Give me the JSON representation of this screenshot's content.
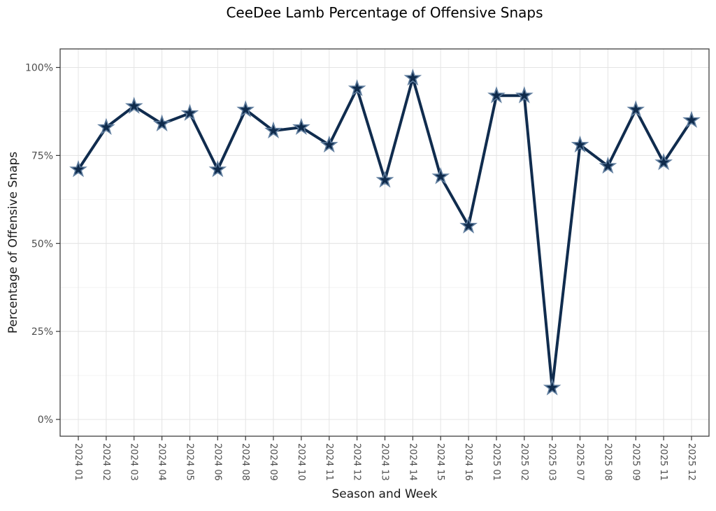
{
  "chart_data": {
    "type": "line",
    "title": "CeeDee Lamb Percentage of Offensive Snaps",
    "xlabel": "Season and Week",
    "ylabel": "Percentage of Offensive Snaps",
    "categories": [
      "2024 01",
      "2024 02",
      "2024 03",
      "2024 04",
      "2024 05",
      "2024 06",
      "2024 08",
      "2024 09",
      "2024 10",
      "2024 11",
      "2024 12",
      "2024 13",
      "2024 14",
      "2024 15",
      "2024 16",
      "2025 01",
      "2025 02",
      "2025 03",
      "2025 07",
      "2025 08",
      "2025 09",
      "2025 11",
      "2025 12"
    ],
    "values": [
      71,
      83,
      89,
      84,
      87,
      71,
      88,
      82,
      83,
      78,
      94,
      68,
      97,
      69,
      55,
      92,
      92,
      9,
      78,
      72,
      88,
      73,
      85
    ],
    "ylim": [
      0,
      100
    ],
    "y_ticks": [
      0,
      25,
      50,
      75,
      100
    ],
    "y_tick_labels": [
      "0%",
      "25%",
      "50%",
      "75%",
      "100%"
    ],
    "y_minor_ticks": [
      12.5,
      37.5,
      62.5,
      87.5
    ],
    "grid": "on",
    "legend": "none",
    "marker": "star",
    "colors": {
      "line": "#102c4e",
      "marker_fill": "#0f2b4c",
      "marker_stroke": "#5f7d9e",
      "grid_major": "#e4e4e4",
      "grid_minor": "#f1f1f1",
      "panel_border": "#404040",
      "axis_tick": "#333333",
      "tick_text": "#4d4d4d",
      "background": "#ffffff"
    }
  }
}
